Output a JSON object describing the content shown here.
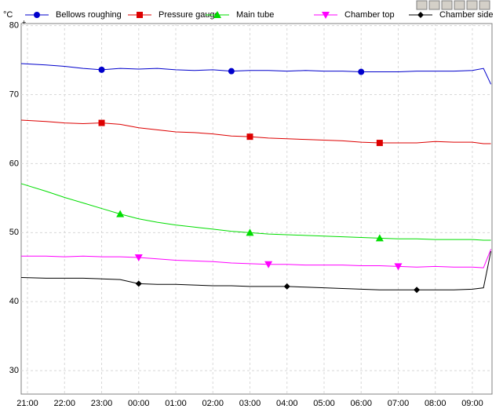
{
  "chart_data": {
    "type": "line",
    "y_unit": "°C",
    "x": [
      20.83,
      21.5,
      22,
      22.5,
      23,
      23.5,
      24,
      24.5,
      25,
      25.5,
      26,
      26.5,
      27,
      27.5,
      28,
      28.5,
      29,
      29.5,
      30,
      30.5,
      31,
      31.5,
      32,
      32.5,
      33,
      33.3,
      33.5
    ],
    "series": [
      {
        "name": "Bellows roughing",
        "color": "#0000cc",
        "marker": "circle",
        "values": [
          74.5,
          74.3,
          74.1,
          73.8,
          73.6,
          73.8,
          73.7,
          73.8,
          73.6,
          73.5,
          73.6,
          73.4,
          73.5,
          73.5,
          73.4,
          73.5,
          73.4,
          73.4,
          73.3,
          73.3,
          73.3,
          73.4,
          73.4,
          73.4,
          73.5,
          73.8,
          71.5
        ]
      },
      {
        "name": "Pressure gauge",
        "color": "#dd0000",
        "marker": "square",
        "values": [
          66.3,
          66.1,
          65.9,
          65.8,
          65.9,
          65.7,
          65.2,
          64.9,
          64.6,
          64.5,
          64.3,
          64.0,
          63.9,
          63.7,
          63.6,
          63.5,
          63.4,
          63.3,
          63.1,
          63.0,
          63.0,
          63.0,
          63.2,
          63.1,
          63.1,
          62.9,
          62.9
        ]
      },
      {
        "name": "Main tube",
        "color": "#00dd00",
        "marker": "triangle-up",
        "values": [
          57.1,
          56.0,
          55.1,
          54.3,
          53.5,
          52.7,
          52.0,
          51.5,
          51.1,
          50.8,
          50.5,
          50.2,
          50.0,
          49.8,
          49.7,
          49.6,
          49.5,
          49.4,
          49.3,
          49.2,
          49.1,
          49.1,
          49.0,
          49.0,
          49.0,
          48.9,
          48.9
        ]
      },
      {
        "name": "Chamber top",
        "color": "#ff00ff",
        "marker": "triangle-down",
        "values": [
          46.6,
          46.6,
          46.5,
          46.6,
          46.5,
          46.5,
          46.4,
          46.2,
          46.0,
          45.9,
          45.8,
          45.6,
          45.5,
          45.4,
          45.4,
          45.3,
          45.3,
          45.3,
          45.2,
          45.2,
          45.1,
          45.0,
          45.1,
          45.0,
          45.0,
          44.9,
          47.6
        ]
      },
      {
        "name": "Chamber side",
        "color": "#000000",
        "marker": "diamond",
        "values": [
          43.5,
          43.4,
          43.4,
          43.4,
          43.3,
          43.2,
          42.6,
          42.5,
          42.5,
          42.4,
          42.3,
          42.3,
          42.2,
          42.2,
          42.2,
          42.1,
          42.0,
          41.9,
          41.8,
          41.7,
          41.7,
          41.7,
          41.7,
          41.7,
          41.8,
          42.0,
          47.3
        ]
      }
    ],
    "xlim": [
      20.83,
      33.53
    ],
    "xticks": [
      {
        "value": 21,
        "label": "21:00"
      },
      {
        "value": 22,
        "label": "22:00"
      },
      {
        "value": 23,
        "label": "23:00"
      },
      {
        "value": 24,
        "label": "00:00"
      },
      {
        "value": 25,
        "label": "01:00"
      },
      {
        "value": 26,
        "label": "02:00"
      },
      {
        "value": 27,
        "label": "03:00"
      },
      {
        "value": 28,
        "label": "04:00"
      },
      {
        "value": 29,
        "label": "05:00"
      },
      {
        "value": 30,
        "label": "06:00"
      },
      {
        "value": 31,
        "label": "07:00"
      },
      {
        "value": 32,
        "label": "08:00"
      },
      {
        "value": 33,
        "label": "09:00"
      }
    ],
    "ylim": [
      26.6,
      80.3
    ],
    "yticks": [
      30,
      40,
      50,
      60,
      70,
      80
    ],
    "grid": true
  }
}
